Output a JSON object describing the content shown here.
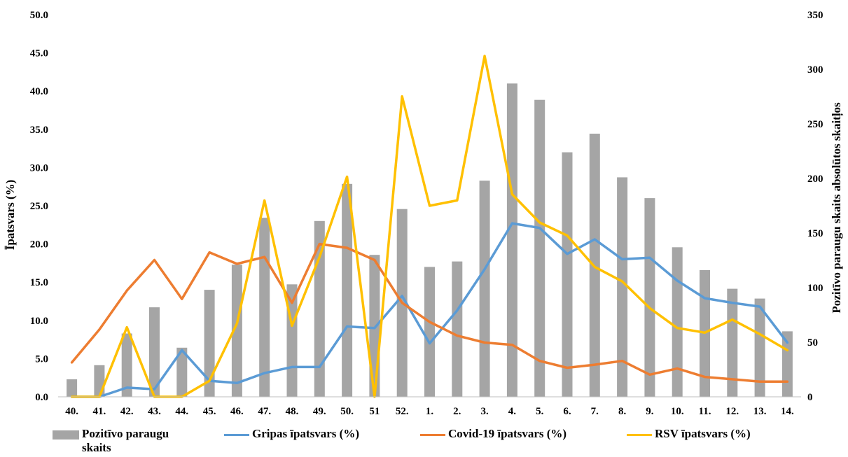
{
  "chart_data": {
    "type": "bar+line",
    "categories": [
      "40.",
      "41.",
      "42.",
      "43.",
      "44.",
      "45.",
      "46.",
      "47.",
      "48.",
      "49.",
      "50.",
      "51",
      "52.",
      "1.",
      "2.",
      "3.",
      "4.",
      "5.",
      "6.",
      "7.",
      "8.",
      "9.",
      "10.",
      "11.",
      "12.",
      "13.",
      "14."
    ],
    "y_left": {
      "label": "Īpatsvars (%)",
      "range": [
        0,
        50
      ],
      "ticks": [
        "0.0",
        "5.0",
        "10.0",
        "15.0",
        "20.0",
        "25.0",
        "30.0",
        "35.0",
        "40.0",
        "45.0",
        "50.0"
      ]
    },
    "y_right": {
      "label": "Pozitīvo paraugu skaits absolūtos skaitļos",
      "range": [
        0,
        350
      ],
      "ticks": [
        "0",
        "50",
        "100",
        "150",
        "200",
        "250",
        "300",
        "350"
      ]
    },
    "bars": {
      "name": "Pozitīvo paraugu skaits",
      "axis": "right",
      "color": "#a5a5a5",
      "values": [
        16,
        29,
        58,
        82,
        45,
        98,
        121,
        164,
        103,
        161,
        195,
        130,
        172,
        119,
        124,
        198,
        287,
        272,
        224,
        241,
        201,
        182,
        137,
        116,
        99,
        90,
        60
      ]
    },
    "series": [
      {
        "name": "Gripas īpatsvars (%)",
        "axis": "left",
        "color": "#5b9bd5",
        "values": [
          0.0,
          0.0,
          1.2,
          1.0,
          6.1,
          2.1,
          1.8,
          3.1,
          3.9,
          3.9,
          9.2,
          9.0,
          13.2,
          7.0,
          11.3,
          16.7,
          22.7,
          22.1,
          18.7,
          20.6,
          18.0,
          18.2,
          15.2,
          12.9,
          12.3,
          11.8,
          7.1
        ]
      },
      {
        "name": "Covid-19 īpatsvars (%)",
        "axis": "left",
        "color": "#ed7d31",
        "values": [
          4.5,
          8.8,
          13.9,
          17.9,
          12.8,
          18.9,
          17.4,
          18.3,
          12.3,
          20.0,
          19.5,
          17.9,
          12.3,
          9.8,
          8.0,
          7.1,
          6.8,
          4.7,
          3.8,
          4.2,
          4.7,
          2.9,
          3.7,
          2.6,
          2.3,
          2.0,
          2.0
        ]
      },
      {
        "name": "RSV īpatsvars (%)",
        "axis": "left",
        "color": "#ffc000",
        "values": [
          0.0,
          0.0,
          9.1,
          0.0,
          0.0,
          2.1,
          9.6,
          25.7,
          9.3,
          18.3,
          28.8,
          0.0,
          39.3,
          25.0,
          25.7,
          44.6,
          26.5,
          22.8,
          21.1,
          17.0,
          15.1,
          11.6,
          9.0,
          8.4,
          10.1,
          8.2,
          6.1
        ]
      }
    ],
    "legend_position": "bottom",
    "grid": false
  },
  "legend": [
    {
      "label": "Pozitīvo paraugu skaits",
      "kind": "bar",
      "color": "#a5a5a5"
    },
    {
      "label": "Gripas īpatsvars (%)",
      "kind": "line",
      "color": "#5b9bd5"
    },
    {
      "label": "Covid-19 īpatsvars (%)",
      "kind": "line",
      "color": "#ed7d31"
    },
    {
      "label": "RSV īpatsvars (%)",
      "kind": "line",
      "color": "#ffc000"
    }
  ]
}
